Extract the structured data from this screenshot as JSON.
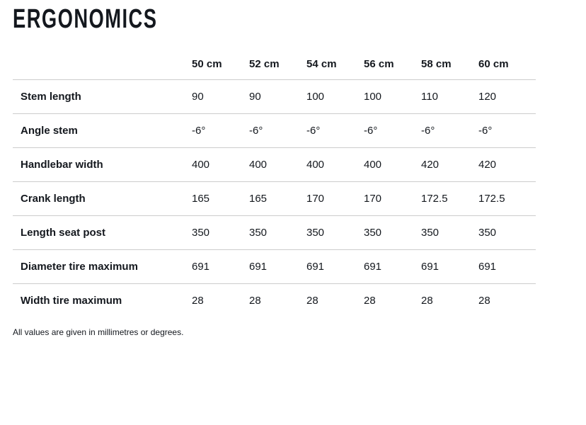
{
  "page": {
    "title": "ERGONOMICS",
    "footnote": "All values are given in millimetres or degrees."
  },
  "table": {
    "columns": [
      "50 cm",
      "52 cm",
      "54 cm",
      "56 cm",
      "58 cm",
      "60 cm"
    ],
    "rows": [
      {
        "label": "Stem length",
        "values": [
          "90",
          "90",
          "100",
          "100",
          "110",
          "120"
        ]
      },
      {
        "label": "Angle stem",
        "values": [
          "-6°",
          "-6°",
          "-6°",
          "-6°",
          "-6°",
          "-6°"
        ]
      },
      {
        "label": "Handlebar width",
        "values": [
          "400",
          "400",
          "400",
          "400",
          "420",
          "420"
        ]
      },
      {
        "label": "Crank length",
        "values": [
          "165",
          "165",
          "170",
          "170",
          "172.5",
          "172.5"
        ]
      },
      {
        "label": "Length seat post",
        "values": [
          "350",
          "350",
          "350",
          "350",
          "350",
          "350"
        ]
      },
      {
        "label": "Diameter tire maximum",
        "values": [
          "691",
          "691",
          "691",
          "691",
          "691",
          "691"
        ]
      },
      {
        "label": "Width tire maximum",
        "values": [
          "28",
          "28",
          "28",
          "28",
          "28",
          "28"
        ]
      }
    ]
  },
  "colors": {
    "text": "#14181E",
    "line": "#CCCCCC",
    "background": "#FFFFFF"
  }
}
